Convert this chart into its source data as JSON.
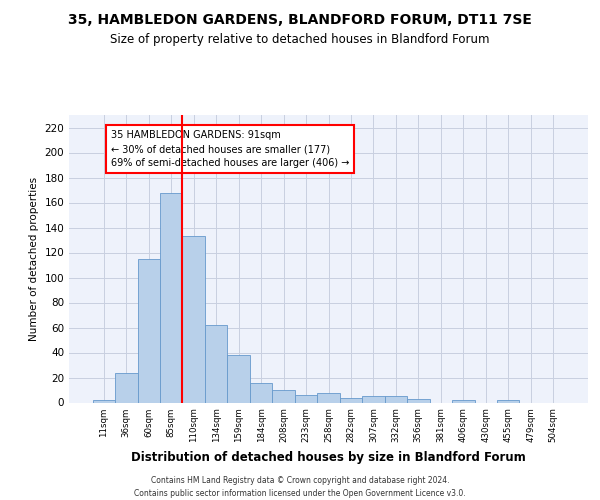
{
  "title": "35, HAMBLEDON GARDENS, BLANDFORD FORUM, DT11 7SE",
  "subtitle": "Size of property relative to detached houses in Blandford Forum",
  "xlabel": "Distribution of detached houses by size in Blandford Forum",
  "ylabel": "Number of detached properties",
  "bar_labels": [
    "11sqm",
    "36sqm",
    "60sqm",
    "85sqm",
    "110sqm",
    "134sqm",
    "159sqm",
    "184sqm",
    "208sqm",
    "233sqm",
    "258sqm",
    "282sqm",
    "307sqm",
    "332sqm",
    "356sqm",
    "381sqm",
    "406sqm",
    "430sqm",
    "455sqm",
    "479sqm",
    "504sqm"
  ],
  "bar_values": [
    2,
    24,
    115,
    168,
    133,
    62,
    38,
    16,
    10,
    6,
    8,
    4,
    5,
    5,
    3,
    0,
    2,
    0,
    2,
    0,
    0
  ],
  "bar_color": "#b8d0ea",
  "bar_edge_color": "#6699cc",
  "vline_x": 3.5,
  "vline_color": "red",
  "annotation_text": "35 HAMBLEDON GARDENS: 91sqm\n← 30% of detached houses are smaller (177)\n69% of semi-detached houses are larger (406) →",
  "annotation_box_color": "white",
  "annotation_box_edge_color": "red",
  "ylim": [
    0,
    230
  ],
  "yticks": [
    0,
    20,
    40,
    60,
    80,
    100,
    120,
    140,
    160,
    180,
    200,
    220
  ],
  "footer_line1": "Contains HM Land Registry data © Crown copyright and database right 2024.",
  "footer_line2": "Contains public sector information licensed under the Open Government Licence v3.0.",
  "bg_color": "#eef2fb",
  "grid_color": "#c8cfe0"
}
